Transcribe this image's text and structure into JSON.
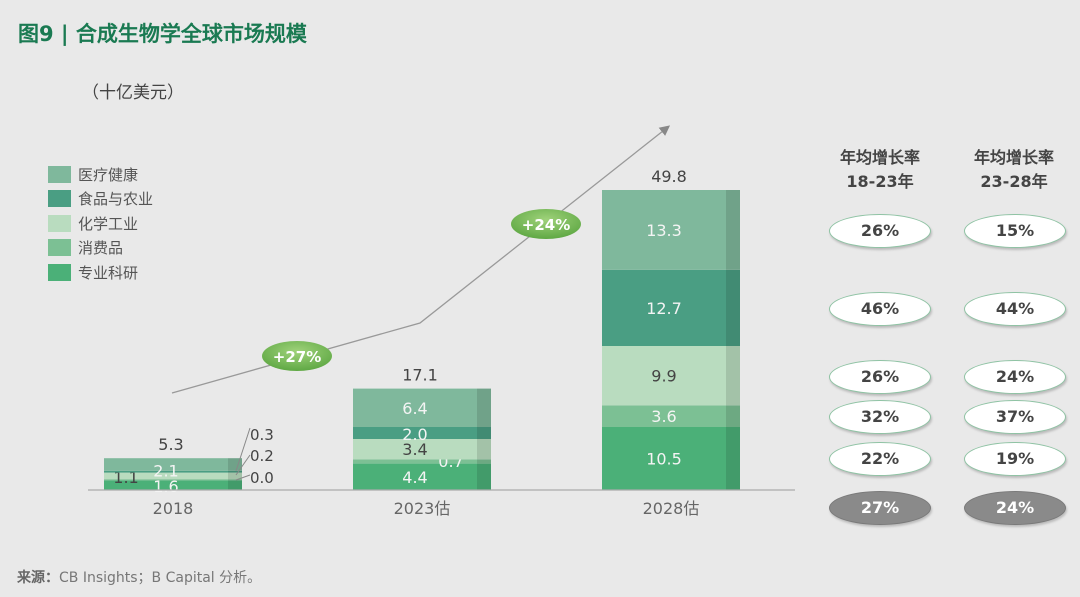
{
  "title": "图9 | 合成生物学全球市场规模",
  "unit": "（十亿美元）",
  "source_label": "来源：",
  "source_text": "CB Insights；B Capital 分析。",
  "chart_data": {
    "type": "bar",
    "stacked": true,
    "categories": [
      "2018",
      "2023估",
      "2028估"
    ],
    "totals": [
      "5.3",
      "17.1",
      "49.8"
    ],
    "series": [
      {
        "name": "医疗健康",
        "color": "#7fb89c",
        "values": [
          2.1,
          6.4,
          13.3
        ],
        "labels": [
          "2.1",
          "6.4",
          "13.3"
        ]
      },
      {
        "name": "食品与农业",
        "color": "#4a9e83",
        "values": [
          0.3,
          2.0,
          12.7
        ],
        "labels": [
          "",
          "2.0",
          "12.7"
        ]
      },
      {
        "name": "化学工业",
        "color": "#b9dcbf",
        "values": [
          1.1,
          3.4,
          9.9
        ],
        "labels": [
          "1.1",
          "3.4",
          "9.9"
        ]
      },
      {
        "name": "消费品",
        "color": "#7cc094",
        "values": [
          0.2,
          0.7,
          3.6
        ],
        "labels": [
          "",
          "0.7",
          "3.6"
        ]
      },
      {
        "name": "专业科研",
        "color": "#4bb078",
        "values": [
          1.6,
          4.4,
          10.5
        ],
        "labels": [
          "1.6",
          "4.4",
          "10.5"
        ]
      }
    ],
    "callouts_2018": [
      "0.3",
      "0.2",
      "0.0"
    ],
    "growth_badges": [
      "+27%",
      "+24%"
    ],
    "legend_position": "left",
    "grid": false
  },
  "cagr": {
    "headers": [
      {
        "line1": "年均增长率",
        "line2": "18-23年"
      },
      {
        "line1": "年均增长率",
        "line2": "23-28年"
      }
    ],
    "rows": [
      [
        "26%",
        "15%"
      ],
      [
        "46%",
        "44%"
      ],
      [
        "26%",
        "24%"
      ],
      [
        "32%",
        "37%"
      ],
      [
        "22%",
        "19%"
      ]
    ],
    "total": [
      "27%",
      "24%"
    ]
  }
}
